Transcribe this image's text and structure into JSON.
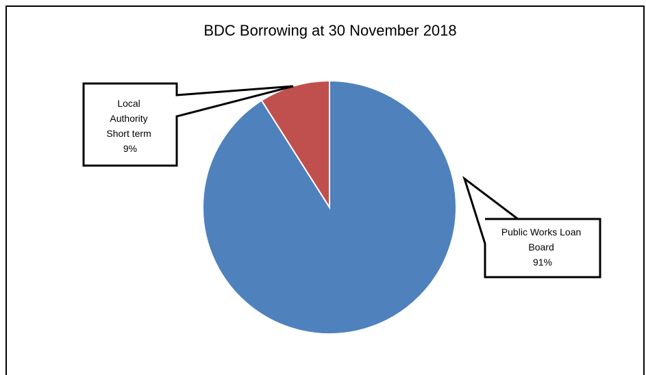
{
  "chart_data": {
    "type": "pie",
    "title": "BDC Borrowing at 30 November  2018",
    "slices": [
      {
        "name": "Public Works Loan Board",
        "label_lines": [
          "Public Works Loan",
          "Board",
          "91%"
        ],
        "value": 91,
        "color": "#4F81BD"
      },
      {
        "name": "Local Authority Short term",
        "label_lines": [
          "Local",
          "Authority",
          "Short term",
          "9%"
        ],
        "value": 9,
        "color": "#C0504D"
      }
    ],
    "start_angle": "12 o'clock",
    "direction": "clockwise",
    "legend": "none",
    "data_labels": "callouts"
  }
}
